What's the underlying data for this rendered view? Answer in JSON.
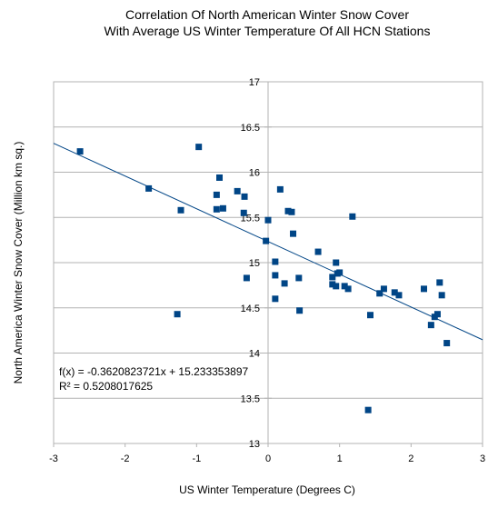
{
  "chart_data": {
    "type": "scatter",
    "title": [
      "Correlation Of North American Winter Snow Cover",
      "With Average US Winter Temperature Of All HCN Stations"
    ],
    "xlabel": "US Winter Temperature (Degrees C)",
    "ylabel": "North America Winter Snow Cover (Million km sq.)",
    "xlim": [
      -3,
      3
    ],
    "ylim": [
      13,
      17
    ],
    "xticks": [
      "-3",
      "-2",
      "-1",
      "0",
      "1",
      "2",
      "3"
    ],
    "yticks": [
      "13",
      "13.5",
      "14",
      "14.5",
      "15",
      "15.5",
      "16",
      "16.5",
      "17"
    ],
    "grid": "horizontal",
    "marker_color": "#004586",
    "trendline_color": "#004586",
    "trendline": {
      "slope": -0.3620823721,
      "intercept": 15.233353897
    },
    "equation": "f(x) = -0.3620823721x + 15.233353897",
    "r_squared": "R² = 0.5208017625",
    "points": [
      [
        -2.63,
        16.23
      ],
      [
        -1.67,
        15.82
      ],
      [
        -1.22,
        15.58
      ],
      [
        -1.27,
        14.43
      ],
      [
        -0.97,
        16.28
      ],
      [
        -0.68,
        15.94
      ],
      [
        -0.72,
        15.75
      ],
      [
        -0.72,
        15.59
      ],
      [
        -0.63,
        15.6
      ],
      [
        -0.43,
        15.79
      ],
      [
        -0.33,
        15.73
      ],
      [
        -0.34,
        15.55
      ],
      [
        -0.3,
        14.83
      ],
      [
        0.0,
        15.47
      ],
      [
        -0.03,
        15.24
      ],
      [
        0.1,
        15.01
      ],
      [
        0.1,
        14.86
      ],
      [
        0.1,
        14.6
      ],
      [
        0.17,
        15.81
      ],
      [
        0.23,
        14.77
      ],
      [
        0.28,
        15.57
      ],
      [
        0.33,
        15.56
      ],
      [
        0.35,
        15.32
      ],
      [
        0.43,
        14.83
      ],
      [
        0.44,
        14.47
      ],
      [
        0.7,
        15.12
      ],
      [
        0.9,
        14.84
      ],
      [
        0.9,
        14.76
      ],
      [
        0.95,
        15.0
      ],
      [
        0.95,
        14.74
      ],
      [
        0.97,
        14.88
      ],
      [
        1.0,
        14.89
      ],
      [
        1.07,
        14.74
      ],
      [
        1.12,
        14.71
      ],
      [
        1.18,
        15.51
      ],
      [
        1.4,
        13.37
      ],
      [
        1.43,
        14.42
      ],
      [
        1.56,
        14.66
      ],
      [
        1.62,
        14.71
      ],
      [
        1.77,
        14.67
      ],
      [
        1.83,
        14.64
      ],
      [
        2.18,
        14.71
      ],
      [
        2.28,
        14.31
      ],
      [
        2.33,
        14.4
      ],
      [
        2.37,
        14.43
      ],
      [
        2.4,
        14.78
      ],
      [
        2.43,
        14.64
      ],
      [
        2.5,
        14.11
      ]
    ]
  }
}
